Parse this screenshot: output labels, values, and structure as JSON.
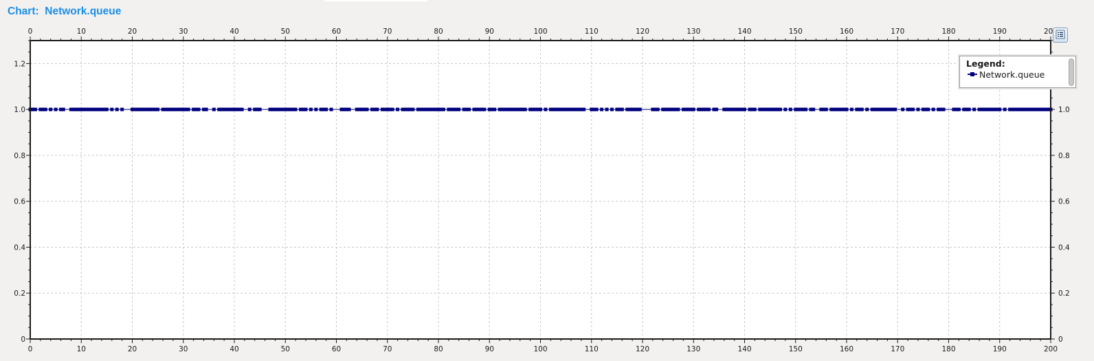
{
  "title": "Chart:  Network.queue",
  "legend": {
    "caption": "Legend:",
    "items": [
      {
        "label": "Network.queue",
        "color": "#00007f"
      }
    ]
  },
  "icons": {
    "legend_toggle": "legend-list-icon"
  },
  "chart_data": {
    "type": "line",
    "title": "Network.queue",
    "xlabel": "",
    "ylabel": "",
    "xlim": [
      0,
      200
    ],
    "ylim": [
      0,
      1.3
    ],
    "x_ticks": [
      0,
      10,
      20,
      30,
      40,
      50,
      60,
      70,
      80,
      90,
      100,
      110,
      120,
      130,
      140,
      150,
      160,
      170,
      180,
      190,
      200
    ],
    "x_tick_labels": [
      "0",
      "10",
      "20",
      "30",
      "40",
      "50",
      "60",
      "70",
      "80",
      "90",
      "100",
      "110",
      "120",
      "130",
      "140",
      "150",
      "160",
      "170",
      "180",
      "190",
      "200"
    ],
    "y_ticks": [
      0,
      0.2,
      0.4,
      0.6,
      0.8,
      1.0,
      1.2
    ],
    "y_tick_labels_left": [
      "0",
      "0.2",
      "0.4",
      "0.6",
      "0.8",
      "1.0",
      "1.2"
    ],
    "y_tick_labels_right": [
      "0",
      "0.2",
      "0.4",
      "0.6",
      "0.8",
      "1.0",
      "1.2"
    ],
    "grid": true,
    "legend_position": "top-right",
    "series": [
      {
        "name": "Network.queue",
        "color": "#00007f",
        "marker": "square",
        "y_constant": 1.0,
        "x": [
          0,
          0.5,
          1,
          2,
          2.5,
          3,
          4,
          5,
          6,
          6.5,
          8,
          8.5,
          9,
          9.5,
          10,
          10.5,
          11,
          11.5,
          12,
          12.5,
          13,
          13.5,
          14,
          14.5,
          15,
          16,
          17,
          18,
          20,
          20.5,
          21,
          21.5,
          22,
          22.5,
          23,
          23.5,
          24,
          24.5,
          25,
          26,
          26.5,
          27,
          27.5,
          28,
          28.5,
          29,
          29.5,
          30,
          30.5,
          31,
          32,
          32.5,
          33,
          34,
          34.5,
          36,
          37,
          37.5,
          38,
          38.5,
          39,
          39.5,
          40,
          40.5,
          41,
          41.5,
          43,
          44,
          44.5,
          45,
          47,
          47.5,
          48,
          48.5,
          49,
          49.5,
          50,
          50.5,
          51,
          51.5,
          52,
          53,
          53.5,
          54,
          55,
          56,
          57,
          57.5,
          58,
          59,
          61,
          61.5,
          62,
          62.5,
          64,
          64.5,
          65,
          65.5,
          66,
          67,
          67.5,
          68,
          69,
          69.5,
          70,
          70.5,
          71,
          72,
          73,
          73.5,
          74,
          74.5,
          75,
          76,
          76.5,
          77,
          77.5,
          78,
          78.5,
          79,
          79.5,
          80,
          80.5,
          81,
          82,
          82.5,
          83,
          83.5,
          84,
          85,
          85.5,
          86,
          87,
          87.5,
          88,
          88.5,
          89,
          90,
          90.5,
          91,
          92,
          92.5,
          93,
          93.5,
          94,
          94.5,
          95,
          95.5,
          96,
          96.5,
          97,
          98,
          98.5,
          99,
          99.5,
          100,
          101,
          102,
          102.5,
          103,
          103.5,
          104,
          104.5,
          105,
          105.5,
          106,
          106.5,
          107,
          107.5,
          108,
          108.5,
          110,
          110.5,
          111,
          112,
          113,
          114,
          115,
          115.5,
          116,
          117,
          117.5,
          118,
          118.5,
          119,
          119.5,
          122,
          122.5,
          123,
          124,
          124.5,
          125,
          125.5,
          126,
          126.5,
          127,
          128,
          128.5,
          129,
          129.5,
          130,
          131,
          131.5,
          132,
          132.5,
          133,
          134,
          134.5,
          136,
          136.5,
          137,
          137.5,
          138,
          138.5,
          139,
          139.5,
          140,
          141,
          141.5,
          142,
          143,
          143.5,
          144,
          144.5,
          145,
          145.5,
          146,
          146.5,
          147,
          148,
          149,
          150,
          150.5,
          151,
          151.5,
          152,
          153,
          153.5,
          155,
          155.5,
          156,
          157,
          157.5,
          158,
          158.5,
          159,
          159.5,
          160,
          161,
          162,
          162.5,
          163,
          164,
          165,
          165.5,
          166,
          166.5,
          167,
          167.5,
          168,
          168.5,
          169,
          169.5,
          171,
          172,
          172.5,
          173,
          174,
          175,
          175.5,
          176,
          177,
          178,
          178.5,
          179,
          181,
          181.5,
          182,
          183,
          183.5,
          184,
          185,
          186,
          186.5,
          187,
          187.5,
          188,
          188.5,
          189,
          189.5,
          190,
          191,
          192,
          192.5,
          193,
          193.5,
          194,
          194.5,
          195,
          195.5,
          196,
          196.5,
          197,
          197.5,
          198,
          198.5,
          199,
          199.5,
          200
        ]
      }
    ]
  }
}
